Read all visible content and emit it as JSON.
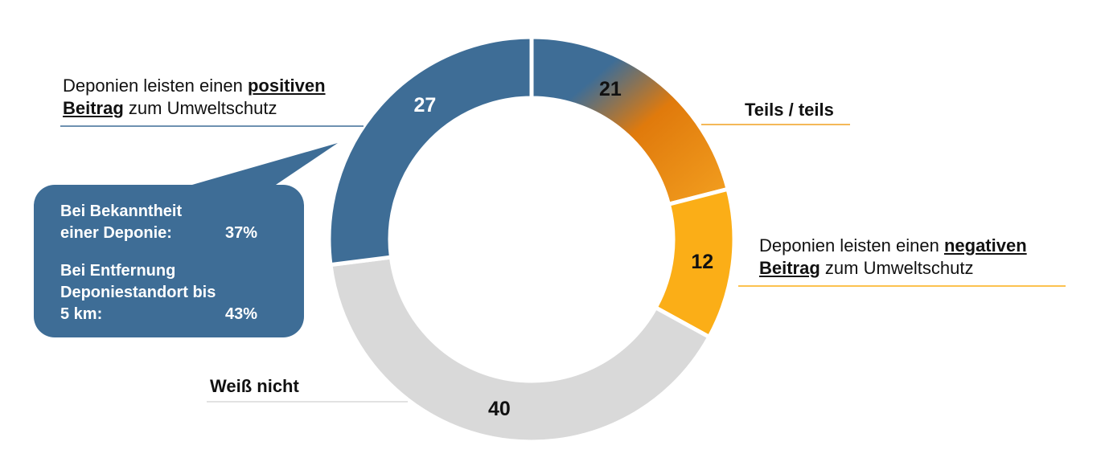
{
  "chart_data": {
    "type": "donut",
    "unit": "%",
    "slices": [
      {
        "label": "Teils / teils",
        "value": 21,
        "color": "#e8860f",
        "color_start": "#3e6d96"
      },
      {
        "label": "Deponien leisten einen negativen Beitrag zum Umweltschutz",
        "value": 12,
        "color": "#fbae17"
      },
      {
        "label": "Weiß nicht",
        "value": 40,
        "color": "#d9d9d9"
      },
      {
        "label": "Deponien leisten einen positiven Beitrag zum Umweltschutz",
        "value": 27,
        "color": "#3e6d96"
      }
    ],
    "slice_value_labels": [
      "21",
      "12",
      "40",
      "27"
    ]
  },
  "labels": {
    "positive": {
      "pre": "Deponien leisten einen ",
      "bold1": "positiven",
      "bold2": "Beitrag",
      "post": " zum Umweltschutz"
    },
    "teils": "Teils / teils",
    "negative": {
      "pre": "Deponien leisten einen ",
      "bold1": "negativen",
      "bold2": "Beitrag",
      "post": " zum Umweltschutz"
    },
    "weiss": "Weiß nicht"
  },
  "callout": {
    "row1_text": "Bei Bekanntheit einer Deponie:",
    "row1_value": "37%",
    "row2_text": "Bei Entfernung Deponiestandort bis 5 km:",
    "row2_value": "43%"
  },
  "colors": {
    "positive": "#3e6d96",
    "teils": "#e8860f",
    "negative": "#fbae17",
    "weiss": "#d9d9d9"
  }
}
